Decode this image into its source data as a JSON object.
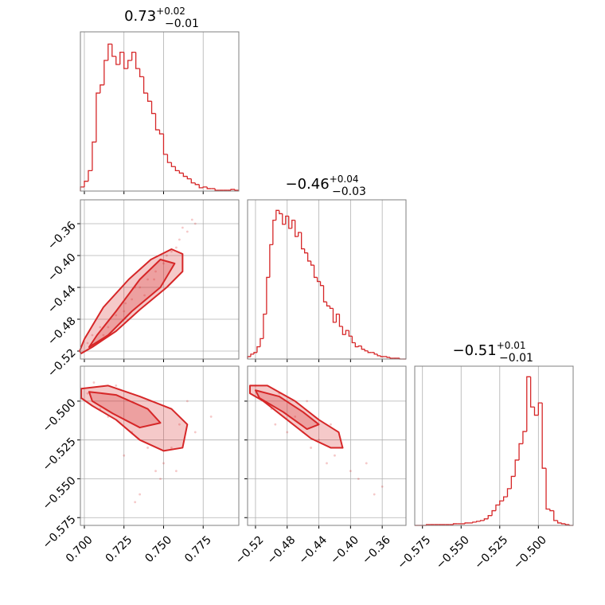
{
  "chart_data": [
    {
      "type": "histogram",
      "title": "0.73",
      "title_sup": "+0.02",
      "title_sub": "−0.01",
      "color": "#d62728",
      "grid": true,
      "xlim": [
        0.6975,
        0.7975
      ],
      "ylim": [
        0,
        195
      ],
      "xticks": [
        0.7,
        0.725,
        0.75,
        0.775
      ],
      "bins": [
        0.6975,
        0.7,
        0.7025,
        0.705,
        0.7075,
        0.71,
        0.7125,
        0.715,
        0.7175,
        0.72,
        0.7225,
        0.725,
        0.7275,
        0.73,
        0.7325,
        0.735,
        0.7375,
        0.74,
        0.7425,
        0.745,
        0.7475,
        0.75,
        0.7525,
        0.755,
        0.7575,
        0.76,
        0.7625,
        0.765,
        0.7675,
        0.77,
        0.7725,
        0.775,
        0.7775,
        0.78,
        0.7825,
        0.785,
        0.7875,
        0.79,
        0.7925,
        0.795,
        0.7975
      ],
      "counts": [
        5,
        12,
        25,
        60,
        120,
        130,
        160,
        180,
        165,
        155,
        170,
        150,
        160,
        170,
        150,
        140,
        120,
        110,
        95,
        75,
        70,
        45,
        35,
        30,
        25,
        22,
        18,
        15,
        10,
        8,
        4,
        5,
        3,
        3,
        1,
        1,
        1,
        1,
        2,
        1
      ]
    },
    {
      "type": "histogram",
      "title": "−0.46",
      "title_sup": "+0.04",
      "title_sub": "−0.03",
      "color": "#d62728",
      "grid": true,
      "xlim": [
        -0.53,
        -0.33
      ],
      "ylim": [
        0,
        195
      ],
      "xticks": [
        -0.52,
        -0.48,
        -0.44,
        -0.4,
        -0.36
      ],
      "bins": [
        -0.53,
        -0.526,
        -0.522,
        -0.518,
        -0.514,
        -0.51,
        -0.506,
        -0.502,
        -0.498,
        -0.494,
        -0.49,
        -0.486,
        -0.482,
        -0.478,
        -0.474,
        -0.47,
        -0.466,
        -0.462,
        -0.458,
        -0.454,
        -0.45,
        -0.446,
        -0.442,
        -0.438,
        -0.434,
        -0.43,
        -0.426,
        -0.422,
        -0.418,
        -0.414,
        -0.41,
        -0.406,
        -0.402,
        -0.398,
        -0.394,
        -0.39,
        -0.386,
        -0.382,
        -0.378,
        -0.374,
        -0.37,
        -0.366,
        -0.362,
        -0.358,
        -0.354,
        -0.35,
        -0.346,
        -0.342,
        -0.338,
        -0.334,
        -0.33
      ],
      "counts": [
        3,
        6,
        8,
        15,
        25,
        55,
        100,
        140,
        170,
        182,
        178,
        165,
        175,
        160,
        170,
        150,
        155,
        135,
        130,
        120,
        115,
        100,
        95,
        90,
        70,
        65,
        62,
        45,
        55,
        40,
        30,
        35,
        28,
        20,
        15,
        16,
        12,
        10,
        8,
        8,
        6,
        4,
        3,
        3,
        2,
        1,
        1,
        1,
        0,
        0
      ]
    },
    {
      "type": "histogram",
      "title": "−0.51",
      "title_sup": "+0.01",
      "title_sub": "−0.01",
      "color": "#d62728",
      "grid": true,
      "xlim": [
        -0.58,
        -0.4775
      ],
      "ylim": [
        0,
        195
      ],
      "xticks": [
        {
          "value": -0.575,
          "label": "−0.575"
        },
        {
          "value": -0.55,
          "label": "−0.550"
        },
        {
          "value": -0.525,
          "label": "−0.525"
        },
        {
          "value": -0.5,
          "label": "−0.500"
        }
      ],
      "bins": [
        -0.58,
        -0.5775,
        -0.575,
        -0.5725,
        -0.57,
        -0.5675,
        -0.565,
        -0.5625,
        -0.56,
        -0.5575,
        -0.555,
        -0.5525,
        -0.55,
        -0.5475,
        -0.545,
        -0.5425,
        -0.54,
        -0.5375,
        -0.535,
        -0.5325,
        -0.53,
        -0.5275,
        -0.525,
        -0.5225,
        -0.52,
        -0.5175,
        -0.515,
        -0.5125,
        -0.51,
        -0.5075,
        -0.505,
        -0.5025,
        -0.5,
        -0.4975,
        -0.495,
        -0.4925,
        -0.49,
        -0.4875,
        -0.485,
        -0.4825,
        -0.48,
        -0.4775
      ],
      "counts": [
        0,
        0,
        0,
        1,
        1,
        1,
        1,
        1,
        1,
        1,
        2,
        2,
        2,
        3,
        3,
        4,
        5,
        6,
        8,
        12,
        18,
        25,
        30,
        35,
        45,
        60,
        80,
        100,
        115,
        182,
        145,
        135,
        150,
        70,
        20,
        18,
        6,
        3,
        2,
        1,
        0
      ]
    },
    {
      "type": "scatter",
      "color": "#d62728",
      "grid": true,
      "xlim": [
        0.6975,
        0.7975
      ],
      "ylim": [
        -0.53,
        -0.33
      ],
      "xticks": [
        0.7,
        0.725,
        0.75,
        0.775
      ],
      "yticks": [
        {
          "value": -0.52,
          "label": "−0.52"
        },
        {
          "value": -0.48,
          "label": "−0.48"
        },
        {
          "value": -0.44,
          "label": "−0.44"
        },
        {
          "value": -0.4,
          "label": "−0.40"
        },
        {
          "value": -0.36,
          "label": "−0.36"
        }
      ],
      "x": [
        0.702,
        0.71,
        0.715,
        0.72,
        0.726,
        0.73,
        0.735,
        0.74,
        0.745,
        0.75,
        0.755,
        0.76,
        0.765,
        0.77,
        0.712,
        0.725,
        0.738,
        0.752,
        0.744,
        0.758,
        0.768,
        0.705,
        0.732,
        0.762
      ],
      "y": [
        -0.51,
        -0.49,
        -0.49,
        -0.475,
        -0.46,
        -0.455,
        -0.44,
        -0.43,
        -0.42,
        -0.41,
        -0.395,
        -0.38,
        -0.37,
        -0.36,
        -0.5,
        -0.47,
        -0.45,
        -0.4,
        -0.43,
        -0.39,
        -0.355,
        -0.5,
        -0.44,
        -0.365
      ],
      "contours": [
        {
          "x": [
            0.698,
            0.705,
            0.72,
            0.735,
            0.752,
            0.762,
            0.762,
            0.755,
            0.742,
            0.728,
            0.712,
            0.7,
            0.697
          ],
          "y": [
            -0.523,
            -0.515,
            -0.495,
            -0.468,
            -0.44,
            -0.42,
            -0.398,
            -0.392,
            -0.405,
            -0.43,
            -0.465,
            -0.505,
            -0.52
          ]
        },
        {
          "x": [
            0.703,
            0.715,
            0.73,
            0.748,
            0.757,
            0.748,
            0.735,
            0.72,
            0.708
          ],
          "y": [
            -0.515,
            -0.5,
            -0.47,
            -0.44,
            -0.41,
            -0.405,
            -0.43,
            -0.47,
            -0.5
          ]
        }
      ]
    },
    {
      "type": "scatter",
      "color": "#d62728",
      "grid": true,
      "xlim": [
        0.6975,
        0.7975
      ],
      "ylim": [
        -0.58,
        -0.4775
      ],
      "xticks": [
        {
          "value": 0.7,
          "label": "0.700"
        },
        {
          "value": 0.725,
          "label": "0.725"
        },
        {
          "value": 0.75,
          "label": "0.750"
        },
        {
          "value": 0.775,
          "label": "0.775"
        }
      ],
      "yticks": [
        {
          "value": -0.575,
          "label": "−0.575"
        },
        {
          "value": -0.55,
          "label": "−0.550"
        },
        {
          "value": -0.525,
          "label": "−0.525"
        },
        {
          "value": -0.5,
          "label": "−0.500"
        }
      ],
      "x": [
        0.702,
        0.71,
        0.72,
        0.73,
        0.74,
        0.75,
        0.76,
        0.77,
        0.715,
        0.725,
        0.735,
        0.745,
        0.755,
        0.765,
        0.78,
        0.732,
        0.748,
        0.758,
        0.706,
        0.742
      ],
      "y": [
        -0.495,
        -0.505,
        -0.49,
        -0.52,
        -0.53,
        -0.54,
        -0.515,
        -0.52,
        -0.51,
        -0.535,
        -0.56,
        -0.545,
        -0.53,
        -0.5,
        -0.51,
        -0.565,
        -0.55,
        -0.545,
        -0.488,
        -0.5
      ],
      "contours": [
        {
          "x": [
            0.698,
            0.715,
            0.735,
            0.755,
            0.765,
            0.762,
            0.75,
            0.735,
            0.72,
            0.705,
            0.698
          ],
          "y": [
            -0.492,
            -0.49,
            -0.497,
            -0.505,
            -0.515,
            -0.53,
            -0.532,
            -0.525,
            -0.512,
            -0.503,
            -0.498
          ]
        },
        {
          "x": [
            0.703,
            0.72,
            0.74,
            0.748,
            0.735,
            0.718,
            0.705
          ],
          "y": [
            -0.494,
            -0.496,
            -0.505,
            -0.514,
            -0.517,
            -0.508,
            -0.5
          ]
        }
      ]
    },
    {
      "type": "scatter",
      "color": "#d62728",
      "grid": true,
      "xlim": [
        -0.53,
        -0.33
      ],
      "ylim": [
        -0.58,
        -0.4775
      ],
      "xticks": [
        {
          "value": -0.52,
          "label": "−0.52"
        },
        {
          "value": -0.48,
          "label": "−0.48"
        },
        {
          "value": -0.44,
          "label": "−0.44"
        },
        {
          "value": -0.4,
          "label": "−0.40"
        },
        {
          "value": -0.36,
          "label": "−0.36"
        }
      ],
      "yticks": [
        -0.575,
        -0.55,
        -0.525,
        -0.5
      ],
      "x": [
        -0.52,
        -0.51,
        -0.5,
        -0.49,
        -0.48,
        -0.47,
        -0.46,
        -0.45,
        -0.44,
        -0.43,
        -0.42,
        -0.41,
        -0.4,
        -0.39,
        -0.38,
        -0.37,
        -0.36,
        -0.495,
        -0.455,
        -0.425
      ],
      "y": [
        -0.49,
        -0.5,
        -0.505,
        -0.495,
        -0.52,
        -0.51,
        -0.52,
        -0.53,
        -0.525,
        -0.54,
        -0.535,
        -0.53,
        -0.545,
        -0.55,
        -0.54,
        -0.56,
        -0.555,
        -0.515,
        -0.5,
        -0.515
      ],
      "contours": [
        {
          "x": [
            -0.527,
            -0.505,
            -0.47,
            -0.44,
            -0.415,
            -0.41,
            -0.425,
            -0.45,
            -0.48,
            -0.51,
            -0.527
          ],
          "y": [
            -0.49,
            -0.49,
            -0.5,
            -0.512,
            -0.52,
            -0.53,
            -0.53,
            -0.524,
            -0.512,
            -0.5,
            -0.495
          ]
        },
        {
          "x": [
            -0.52,
            -0.49,
            -0.46,
            -0.44,
            -0.455,
            -0.485,
            -0.515
          ],
          "y": [
            -0.493,
            -0.497,
            -0.507,
            -0.515,
            -0.518,
            -0.507,
            -0.498
          ]
        }
      ]
    }
  ]
}
